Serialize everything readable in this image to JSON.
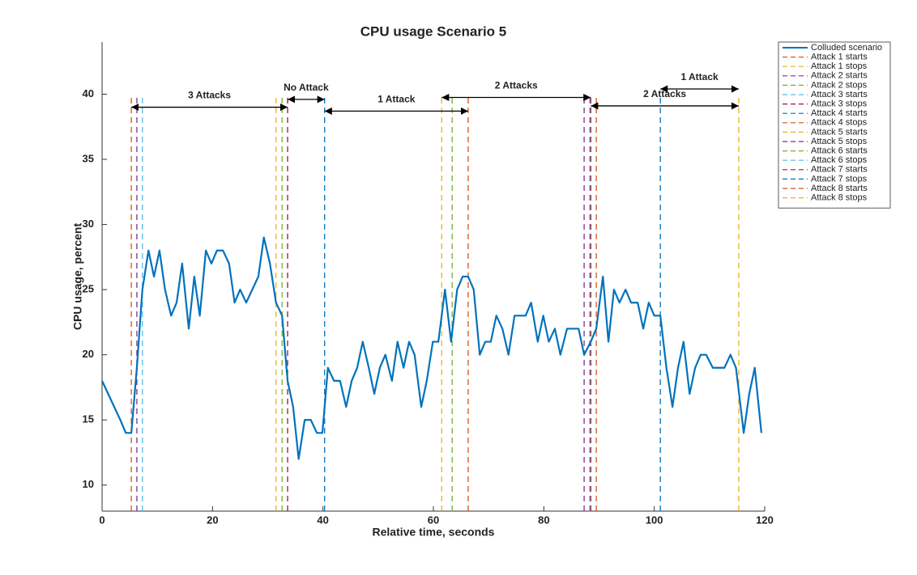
{
  "chart_data": {
    "type": "line",
    "title": "CPU usage Scenario 5",
    "x_label": "Relative time, seconds",
    "y_label": "CPU usage, percent",
    "xlim": [
      0,
      120
    ],
    "xticks": [
      0,
      20,
      40,
      60,
      80,
      100,
      120
    ],
    "ylim": [
      8,
      44
    ],
    "yticks": [
      10,
      15,
      20,
      25,
      30,
      35,
      40
    ],
    "grid": false,
    "legend": "outside-top-right",
    "series": [
      {
        "name": "Colluded scenario",
        "color": "#0072BD",
        "x": [
          0,
          1.1,
          2.2,
          3.3,
          4.3,
          5.3,
          6.3,
          7.3,
          8.4,
          9.4,
          10.4,
          11.4,
          12.5,
          13.5,
          14.5,
          15.7,
          16.7,
          17.7,
          18.8,
          19.8,
          20.8,
          21.9,
          23,
          24,
          25,
          26.1,
          27.2,
          28.3,
          29.3,
          30.4,
          31.5,
          32.6,
          33.6,
          34.6,
          35.6,
          36.7,
          37.8,
          38.9,
          39.9,
          40.9,
          42,
          43.1,
          44.2,
          45.2,
          46.2,
          47.2,
          48.3,
          49.3,
          50.3,
          51.3,
          52.5,
          53.5,
          54.6,
          55.6,
          56.6,
          57.8,
          58.8,
          59.9,
          60.9,
          62.1,
          63.2,
          64.3,
          65.3,
          66.3,
          67.3,
          68.4,
          69.4,
          70.4,
          71.4,
          72.5,
          73.6,
          74.7,
          75.7,
          76.7,
          77.7,
          78.9,
          79.9,
          80.9,
          82,
          83,
          84.2,
          85.2,
          86.3,
          87.3,
          88.5,
          89.5,
          90.7,
          91.7,
          92.7,
          93.7,
          94.8,
          95.8,
          97,
          98,
          99,
          100,
          101.1,
          102.2,
          103.3,
          104.3,
          105.3,
          106.4,
          107.4,
          108.4,
          109.4,
          110.6,
          111.6,
          112.7,
          113.8,
          114.8,
          116.2,
          117.2,
          118.2,
          119.4
        ],
        "values": [
          18,
          17,
          16,
          15,
          14,
          14,
          19,
          25,
          28,
          26,
          28,
          25,
          23,
          24,
          27,
          22,
          26,
          23,
          28,
          27,
          28,
          28,
          27,
          24,
          25,
          24,
          25,
          26,
          29,
          27,
          24,
          23,
          18,
          16,
          12,
          15,
          15,
          14,
          14,
          19,
          18,
          18,
          16,
          18,
          19,
          21,
          19,
          17,
          19,
          20,
          18,
          21,
          19,
          21,
          20,
          16,
          18,
          21,
          21,
          25,
          21,
          25,
          26,
          26,
          25,
          20,
          21,
          21,
          23,
          22,
          20,
          23,
          23,
          23,
          24,
          21,
          23,
          21,
          22,
          20,
          22,
          22,
          22,
          20,
          21,
          22,
          26,
          21,
          25,
          24,
          25,
          24,
          24,
          22,
          24,
          23,
          23,
          19,
          16,
          19,
          21,
          17,
          19,
          20,
          20,
          19,
          19,
          19,
          20,
          19,
          14,
          17,
          19,
          14
        ]
      }
    ],
    "vlines": [
      {
        "name": "Attack 1 starts",
        "color": "#D95319",
        "x": 5.3
      },
      {
        "name": "Attack 1 stops",
        "color": "#EDB120",
        "x": 31.5
      },
      {
        "name": "Attack 2 starts",
        "color": "#7E2F8E",
        "x": 6.3
      },
      {
        "name": "Attack 2 stops",
        "color": "#77AC30",
        "x": 32.6
      },
      {
        "name": "Attack 3 starts",
        "color": "#4DBEEE",
        "x": 7.3
      },
      {
        "name": "Attack 3 stops",
        "color": "#A2142F",
        "x": 33.6
      },
      {
        "name": "Attack 4 starts",
        "color": "#0072BD",
        "x": 40.3
      },
      {
        "name": "Attack 4 stops",
        "color": "#D95319",
        "x": 66.3
      },
      {
        "name": "Attack 5 starts",
        "color": "#EDB120",
        "x": 61.5
      },
      {
        "name": "Attack 5 stops",
        "color": "#7E2F8E",
        "x": 87.3
      },
      {
        "name": "Attack 6 starts",
        "color": "#77AC30",
        "x": 63.4
      },
      {
        "name": "Attack 6 stops",
        "color": "#4DBEEE",
        "x": 88.3
      },
      {
        "name": "Attack 7 starts",
        "color": "#A2142F",
        "x": 88.5
      },
      {
        "name": "Attack 7 stops",
        "color": "#0072BD",
        "x": 101.1
      },
      {
        "name": "Attack 8 starts",
        "color": "#D95319",
        "x": 89.5
      },
      {
        "name": "Attack 8 stops",
        "color": "#EDB120",
        "x": 115.3
      }
    ],
    "annotations": [
      {
        "text": "3 Attacks",
        "x_start": 5.3,
        "x_end": 33.6,
        "y": 39.0
      },
      {
        "text": "No Attack",
        "x_start": 33.6,
        "x_end": 40.3,
        "y": 39.6
      },
      {
        "text": "1 Attack",
        "x_start": 40.3,
        "x_end": 66.3,
        "y": 38.7
      },
      {
        "text": "2 Attacks",
        "x_start": 61.5,
        "x_end": 88.5,
        "y": 39.75
      },
      {
        "text": "2 Attacks",
        "x_start": 88.5,
        "x_end": 115.3,
        "y": 39.1
      },
      {
        "text": "1 Attack",
        "x_start": 101.1,
        "x_end": 115.3,
        "y": 40.4
      }
    ]
  }
}
